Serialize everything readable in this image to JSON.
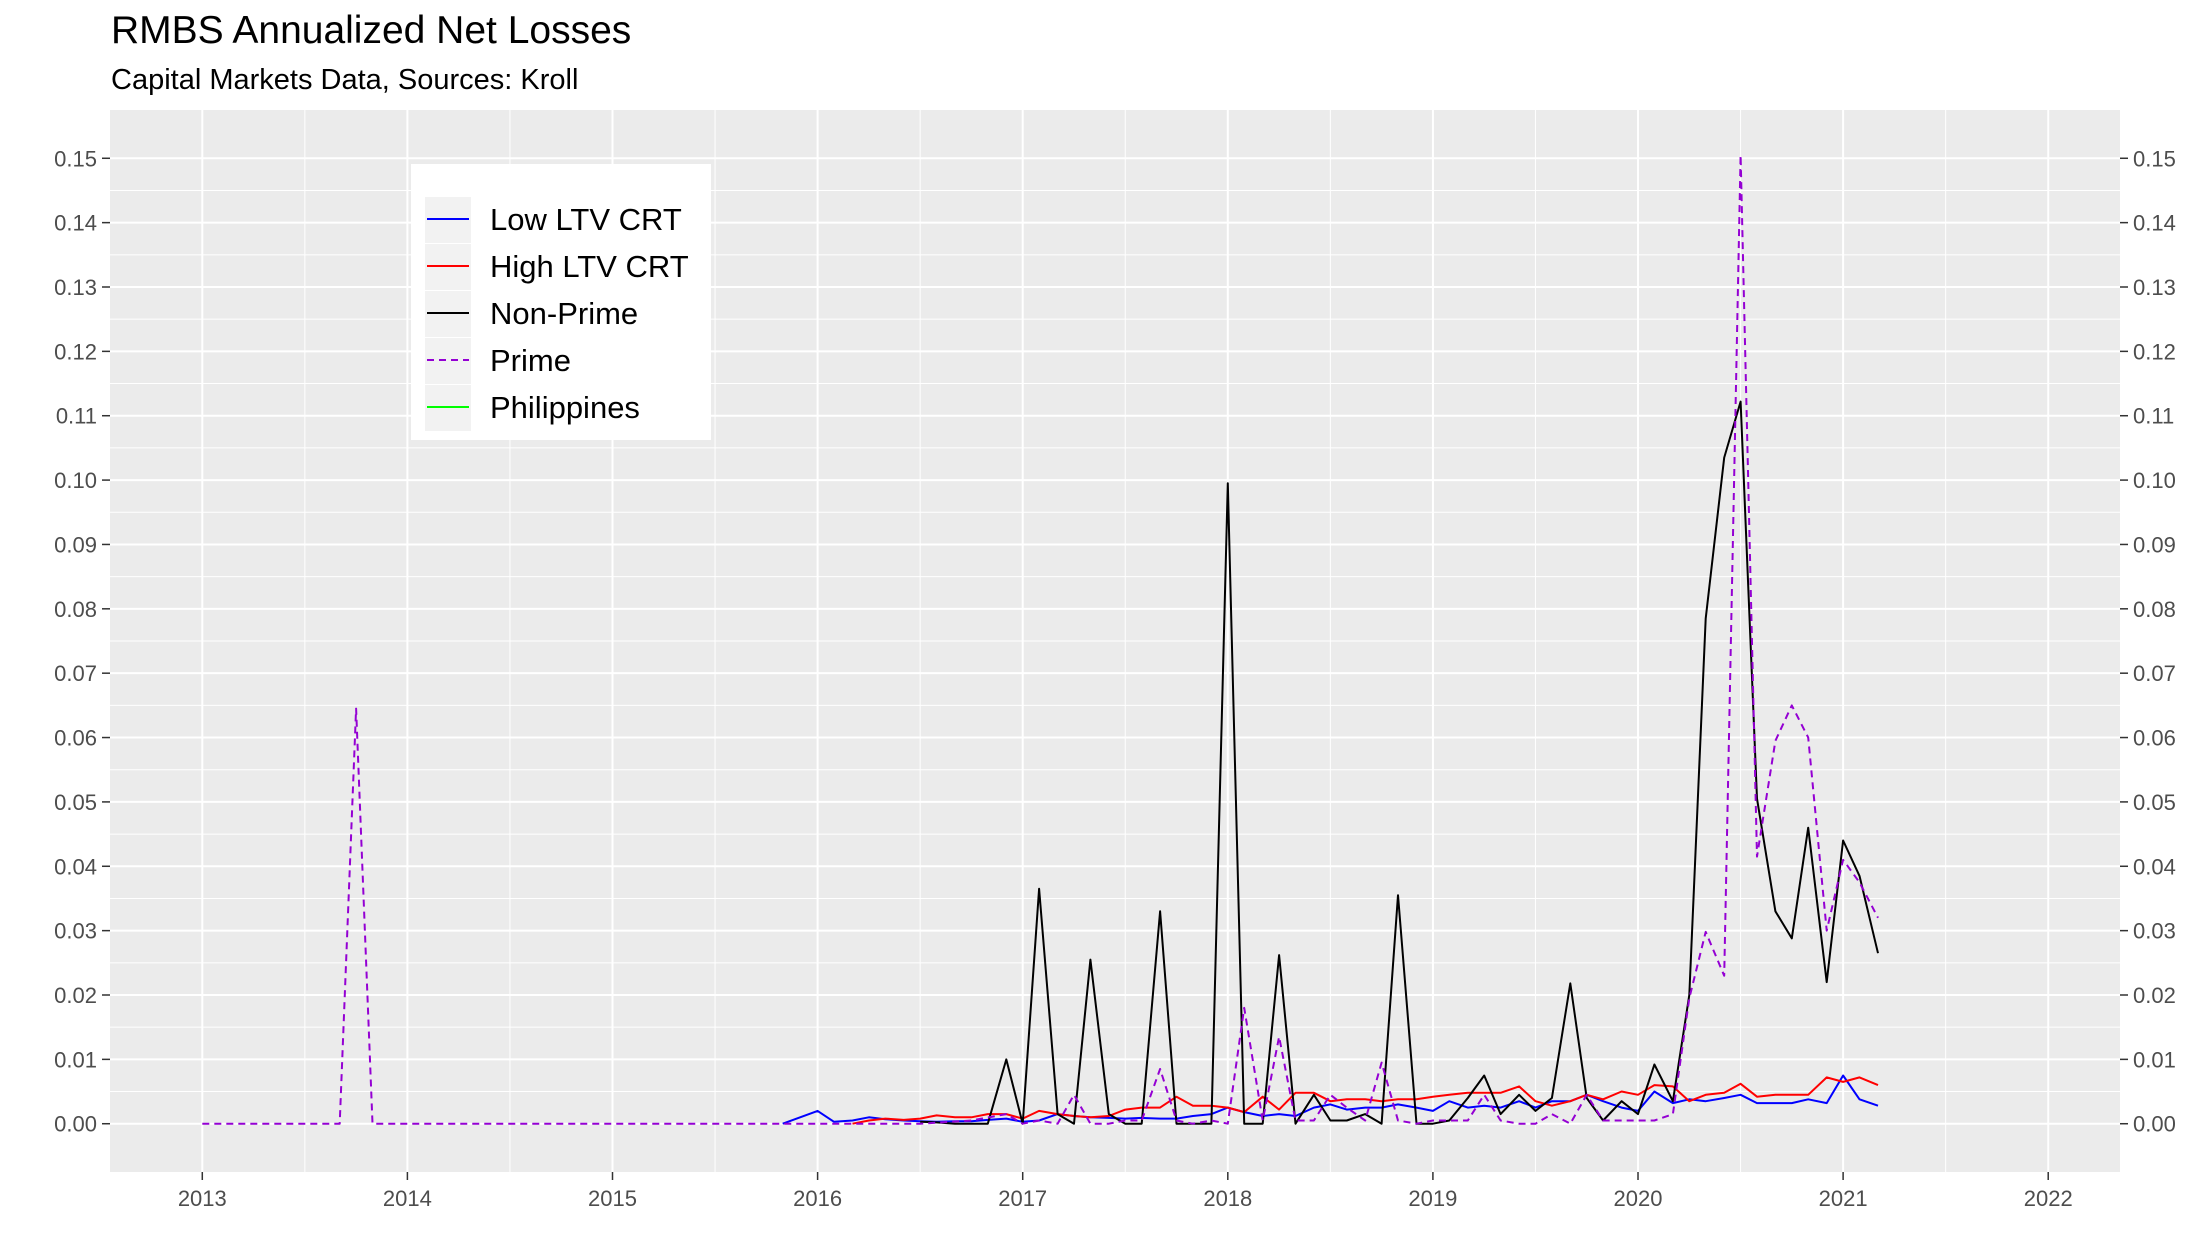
{
  "title": "RMBS Annualized Net Losses",
  "subtitle": "Capital Markets Data, Sources: Kroll",
  "chart_data": {
    "type": "line",
    "title": "RMBS Annualized Net Losses",
    "subtitle": "Capital Markets Data, Sources: Kroll",
    "xlabel": "",
    "ylabel": "",
    "xlim": [
      2012.55,
      2022.35
    ],
    "ylim": [
      -0.0075,
      0.1575
    ],
    "x_ticks": [
      "2013",
      "2014",
      "2015",
      "2016",
      "2017",
      "2018",
      "2019",
      "2020",
      "2021",
      "2022"
    ],
    "y_ticks": [
      "0.00",
      "0.01",
      "0.02",
      "0.03",
      "0.04",
      "0.05",
      "0.06",
      "0.07",
      "0.08",
      "0.09",
      "0.10",
      "0.11",
      "0.12",
      "0.13",
      "0.14",
      "0.15"
    ],
    "grid": true,
    "secondary_y_axis": true,
    "legend_position": "top-left",
    "background_color": "#ebebeb",
    "series": [
      {
        "name": "Low LTV CRT",
        "color": "#0000ff",
        "linestyle": "solid",
        "x": [
          2015.83,
          2016.0,
          2016.08,
          2016.17,
          2016.25,
          2016.33,
          2016.42,
          2016.5,
          2016.58,
          2016.67,
          2016.75,
          2016.83,
          2016.92,
          2017.0,
          2017.08,
          2017.17,
          2017.25,
          2017.33,
          2017.42,
          2017.5,
          2017.58,
          2017.67,
          2017.75,
          2017.83,
          2017.92,
          2018.0,
          2018.08,
          2018.17,
          2018.25,
          2018.33,
          2018.42,
          2018.5,
          2018.58,
          2018.67,
          2018.75,
          2018.83,
          2018.92,
          2019.0,
          2019.08,
          2019.17,
          2019.25,
          2019.33,
          2019.42,
          2019.5,
          2019.58,
          2019.67,
          2019.75,
          2019.83,
          2019.92,
          2020.0,
          2020.08,
          2020.17,
          2020.25,
          2020.33,
          2020.42,
          2020.5,
          2020.58,
          2020.67,
          2020.75,
          2020.83,
          2020.92,
          2021.0,
          2021.08,
          2021.17
        ],
        "values": [
          0.0,
          0.002,
          0.0003,
          0.0005,
          0.001,
          0.0007,
          0.0005,
          0.0004,
          0.0003,
          0.0004,
          0.0004,
          0.0006,
          0.0008,
          0.0003,
          0.0005,
          0.0015,
          0.0012,
          0.001,
          0.0009,
          0.0008,
          0.0009,
          0.0008,
          0.0008,
          0.0012,
          0.0015,
          0.0025,
          0.0018,
          0.0012,
          0.0015,
          0.0012,
          0.0025,
          0.003,
          0.0022,
          0.0025,
          0.0025,
          0.003,
          0.0025,
          0.002,
          0.0035,
          0.0025,
          0.0028,
          0.0025,
          0.0035,
          0.0025,
          0.0035,
          0.0035,
          0.0045,
          0.0035,
          0.0025,
          0.002,
          0.005,
          0.0032,
          0.0038,
          0.0035,
          0.004,
          0.0045,
          0.0032,
          0.0032,
          0.0032,
          0.0038,
          0.0032,
          0.0075,
          0.0038,
          0.0028
        ]
      },
      {
        "name": "High LTV CRT",
        "color": "#ff0000",
        "linestyle": "solid",
        "x": [
          2016.17,
          2016.25,
          2016.33,
          2016.42,
          2016.5,
          2016.58,
          2016.67,
          2016.75,
          2016.83,
          2016.92,
          2017.0,
          2017.08,
          2017.17,
          2017.25,
          2017.33,
          2017.42,
          2017.5,
          2017.58,
          2017.67,
          2017.75,
          2017.83,
          2017.92,
          2018.0,
          2018.08,
          2018.17,
          2018.25,
          2018.33,
          2018.42,
          2018.5,
          2018.58,
          2018.67,
          2018.75,
          2018.83,
          2018.92,
          2019.0,
          2019.08,
          2019.17,
          2019.25,
          2019.33,
          2019.42,
          2019.5,
          2019.58,
          2019.67,
          2019.75,
          2019.83,
          2019.92,
          2020.0,
          2020.08,
          2020.17,
          2020.25,
          2020.33,
          2020.42,
          2020.5,
          2020.58,
          2020.67,
          2020.75,
          2020.83,
          2020.92,
          2021.0,
          2021.08,
          2021.17
        ],
        "values": [
          0.0,
          0.0005,
          0.0008,
          0.0006,
          0.0008,
          0.0013,
          0.001,
          0.001,
          0.0015,
          0.0015,
          0.0008,
          0.002,
          0.0015,
          0.0012,
          0.001,
          0.0012,
          0.0022,
          0.0025,
          0.0025,
          0.0042,
          0.0028,
          0.0028,
          0.0025,
          0.0018,
          0.0042,
          0.0022,
          0.0048,
          0.0048,
          0.0035,
          0.0038,
          0.0038,
          0.0035,
          0.0038,
          0.0038,
          0.0042,
          0.0045,
          0.0048,
          0.0048,
          0.0048,
          0.0058,
          0.0035,
          0.0028,
          0.0035,
          0.0045,
          0.0038,
          0.005,
          0.0045,
          0.006,
          0.0058,
          0.0035,
          0.0045,
          0.0048,
          0.0062,
          0.0042,
          0.0045,
          0.0045,
          0.0045,
          0.0072,
          0.0065,
          0.0072,
          0.006
        ]
      },
      {
        "name": "Non-Prime",
        "color": "#000000",
        "linestyle": "solid",
        "x": [
          2016.5,
          2016.58,
          2016.67,
          2016.75,
          2016.83,
          2016.92,
          2017.0,
          2017.08,
          2017.17,
          2017.25,
          2017.33,
          2017.42,
          2017.5,
          2017.58,
          2017.67,
          2017.75,
          2017.83,
          2017.92,
          2018.0,
          2018.08,
          2018.17,
          2018.25,
          2018.33,
          2018.42,
          2018.5,
          2018.58,
          2018.67,
          2018.75,
          2018.83,
          2018.92,
          2019.0,
          2019.08,
          2019.17,
          2019.25,
          2019.33,
          2019.42,
          2019.5,
          2019.58,
          2019.67,
          2019.75,
          2019.83,
          2019.92,
          2020.0,
          2020.08,
          2020.17,
          2020.25,
          2020.33,
          2020.42,
          2020.5,
          2020.58,
          2020.67,
          2020.75,
          2020.83,
          2020.92,
          2021.0,
          2021.08,
          2021.17
        ],
        "values": [
          0.0003,
          0.0002,
          0.0,
          0.0,
          0.0,
          0.01,
          0.0,
          0.0365,
          0.0015,
          0.0,
          0.0255,
          0.0015,
          0.0,
          0.0,
          0.033,
          0.0,
          0.0,
          0.0,
          0.0995,
          0.0,
          0.0,
          0.0262,
          0.0,
          0.0045,
          0.0005,
          0.0005,
          0.0015,
          0.0,
          0.0355,
          0.0,
          0.0,
          0.0005,
          0.004,
          0.0075,
          0.0015,
          0.0045,
          0.002,
          0.004,
          0.0218,
          0.004,
          0.0005,
          0.0035,
          0.0015,
          0.0092,
          0.0035,
          0.02,
          0.0785,
          0.1035,
          0.1122,
          0.0505,
          0.033,
          0.0288,
          0.046,
          0.022,
          0.044,
          0.0385,
          0.0265
        ]
      },
      {
        "name": "Prime",
        "color": "#9400d3",
        "linestyle": "dashed",
        "x": [
          2013.0,
          2013.67,
          2013.75,
          2013.83,
          2015.83,
          2016.0,
          2016.5,
          2016.75,
          2016.92,
          2017.0,
          2017.08,
          2017.17,
          2017.25,
          2017.33,
          2017.42,
          2017.5,
          2017.58,
          2017.67,
          2017.75,
          2017.83,
          2017.92,
          2018.0,
          2018.08,
          2018.17,
          2018.25,
          2018.33,
          2018.42,
          2018.5,
          2018.58,
          2018.67,
          2018.75,
          2018.83,
          2018.92,
          2019.0,
          2019.08,
          2019.17,
          2019.25,
          2019.33,
          2019.42,
          2019.5,
          2019.58,
          2019.67,
          2019.75,
          2019.83,
          2019.92,
          2020.0,
          2020.08,
          2020.17,
          2020.25,
          2020.33,
          2020.42,
          2020.5,
          2020.58,
          2020.67,
          2020.75,
          2020.83,
          2020.92,
          2021.0,
          2021.08,
          2021.17
        ],
        "values": [
          0.0,
          0.0,
          0.0645,
          0.0,
          0.0,
          0.0,
          0.0,
          0.0005,
          0.0015,
          0.0,
          0.0005,
          0.0,
          0.0045,
          0.0,
          0.0,
          0.0005,
          0.0005,
          0.0085,
          0.0005,
          0.0,
          0.0005,
          0.0,
          0.018,
          0.0005,
          0.0135,
          0.0005,
          0.0005,
          0.0045,
          0.0025,
          0.0005,
          0.0095,
          0.0005,
          0.0,
          0.0005,
          0.0005,
          0.0005,
          0.0045,
          0.0005,
          0.0,
          0.0,
          0.0015,
          0.0,
          0.0045,
          0.0005,
          0.0005,
          0.0005,
          0.0005,
          0.0015,
          0.0195,
          0.0298,
          0.023,
          0.1505,
          0.0415,
          0.0595,
          0.065,
          0.06,
          0.03,
          0.041,
          0.0375,
          0.032
        ]
      },
      {
        "name": "Philippines",
        "color": "#00ff00",
        "linestyle": "solid",
        "x": [],
        "values": []
      }
    ]
  }
}
